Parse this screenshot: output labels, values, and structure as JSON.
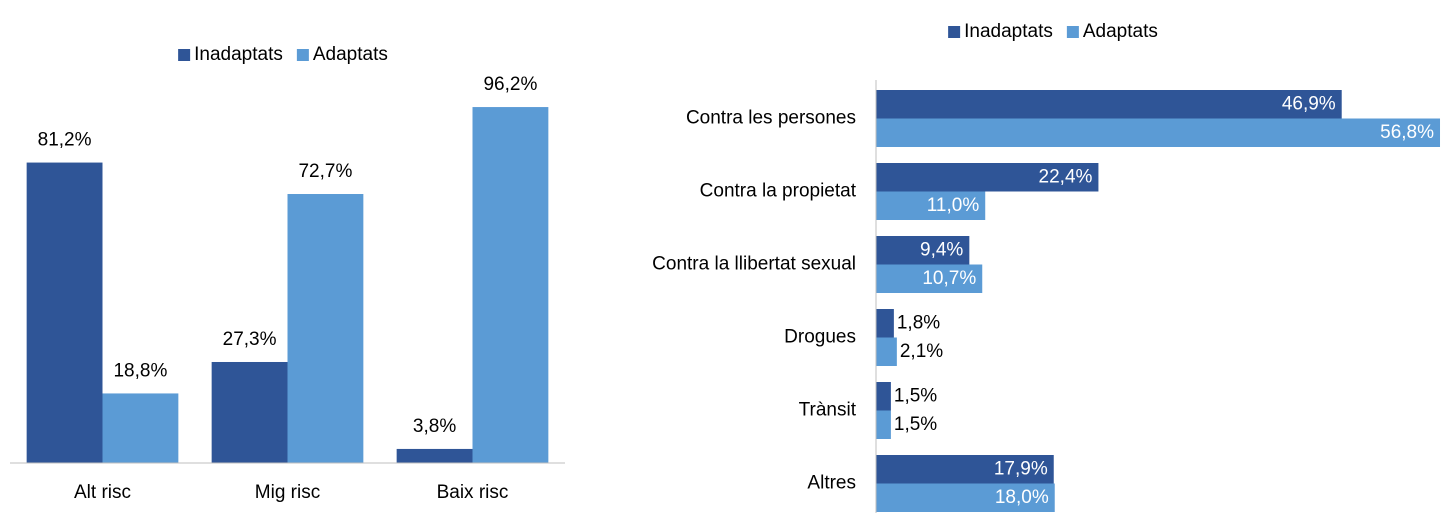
{
  "chart_data": [
    {
      "type": "bar",
      "orientation": "vertical",
      "legend": "top",
      "categories": [
        "Alt risc",
        "Mig risc",
        "Baix risc"
      ],
      "ylim": [
        0,
        100
      ],
      "series": [
        {
          "name": "Inadaptats",
          "color": "#2f5597",
          "values": [
            81.2,
            27.3,
            3.8
          ],
          "value_labels": [
            "81,2%",
            "27,3%",
            "3,8%"
          ]
        },
        {
          "name": "Adaptats",
          "color": "#5b9bd5",
          "values": [
            18.8,
            72.7,
            96.2
          ],
          "value_labels": [
            "18,8%",
            "72,7%",
            "96,2%"
          ]
        }
      ]
    },
    {
      "type": "bar",
      "orientation": "horizontal",
      "legend": "top",
      "categories": [
        "Contra les persones",
        "Contra la propietat",
        "Contra la llibertat sexual",
        "Drogues",
        "Trànsit",
        "Altres"
      ],
      "xlim": [
        0,
        57
      ],
      "series": [
        {
          "name": "Inadaptats",
          "color": "#2f5597",
          "values": [
            46.9,
            22.4,
            9.4,
            1.8,
            1.5,
            17.9
          ],
          "value_labels": [
            "46,9%",
            "22,4%",
            "9,4%",
            "1,8%",
            "1,5%",
            "17,9%"
          ]
        },
        {
          "name": "Adaptats",
          "color": "#5b9bd5",
          "values": [
            56.8,
            11.0,
            10.7,
            2.1,
            1.5,
            18.0
          ],
          "value_labels": [
            "56,8%",
            "11,0%",
            "10,7%",
            "2,1%",
            "1,5%",
            "18,0%"
          ]
        }
      ]
    }
  ]
}
